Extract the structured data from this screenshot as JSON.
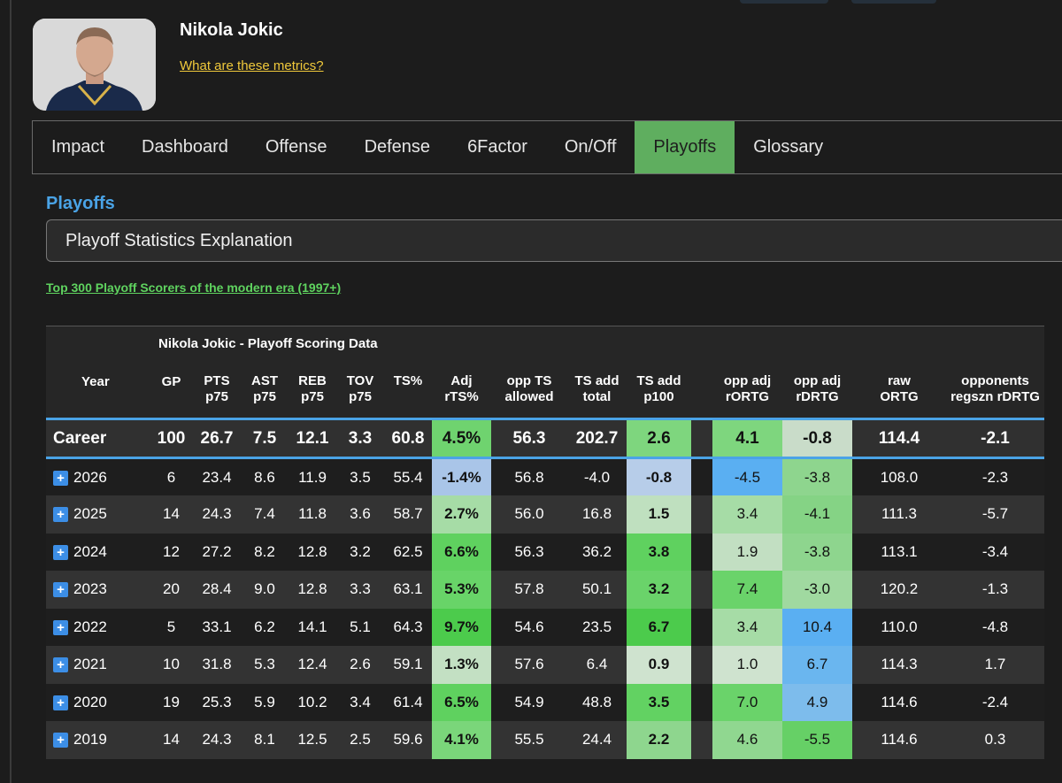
{
  "player": {
    "name": "Nikola Jokic",
    "metrics_link": "What are these metrics?"
  },
  "tabs": [
    {
      "label": "Impact",
      "active": false
    },
    {
      "label": "Dashboard",
      "active": false
    },
    {
      "label": "Offense",
      "active": false
    },
    {
      "label": "Defense",
      "active": false
    },
    {
      "label": "6Factor",
      "active": false
    },
    {
      "label": "On/Off",
      "active": false
    },
    {
      "label": "Playoffs",
      "active": true
    },
    {
      "label": "Glossary",
      "active": false
    }
  ],
  "section": {
    "title": "Playoffs",
    "accordion_label": "Playoff Statistics Explanation",
    "top300_link": "Top 300 Playoff Scorers of the modern era (1997+)"
  },
  "table": {
    "caption": "Nikola Jokic - Playoff Scoring Data",
    "headers": [
      [
        "Year",
        ""
      ],
      [
        "GP",
        ""
      ],
      [
        "PTS",
        "p75"
      ],
      [
        "AST",
        "p75"
      ],
      [
        "REB",
        "p75"
      ],
      [
        "TOV",
        "p75"
      ],
      [
        "TS%",
        ""
      ],
      [
        "Adj",
        "rTS%"
      ],
      [
        "opp TS",
        "allowed"
      ],
      [
        "TS add",
        "total"
      ],
      [
        "TS add",
        "p100"
      ],
      [
        "",
        ""
      ],
      [
        "opp adj",
        "rORTG"
      ],
      [
        "opp adj",
        "rDRTG"
      ],
      [
        "raw",
        "ORTG"
      ],
      [
        "opponents",
        "regszn rDRTG"
      ]
    ],
    "career": {
      "year": "Career",
      "cells": [
        "100",
        "26.7",
        "7.5",
        "12.1",
        "3.3",
        "60.8",
        "4.5%",
        "56.3",
        "202.7",
        "2.6",
        "",
        "4.1",
        "-0.8",
        "114.4",
        "-2.1"
      ],
      "colors": [
        "",
        "",
        "",
        "",
        "",
        "",
        "#6fd36f",
        "",
        "",
        "#7ed67e",
        "",
        "#7ed67e",
        "#c9dcc9",
        "",
        ""
      ]
    },
    "rows": [
      {
        "year": "2026",
        "cells": [
          "6",
          "23.4",
          "8.6",
          "11.9",
          "3.5",
          "55.4",
          "-1.4%",
          "56.8",
          "-4.0",
          "-0.8",
          "",
          "-4.5",
          "-3.8",
          "108.0",
          "-2.3"
        ],
        "colors": [
          "",
          "",
          "",
          "",
          "",
          "",
          "#a9c5e8",
          "",
          "",
          "#b7cde9",
          "",
          "#5aaff2",
          "#8ed58e",
          "",
          ""
        ]
      },
      {
        "year": "2025",
        "cells": [
          "14",
          "24.3",
          "7.4",
          "11.8",
          "3.6",
          "58.7",
          "2.7%",
          "56.0",
          "16.8",
          "1.5",
          "",
          "3.4",
          "-4.1",
          "111.3",
          "-5.7"
        ],
        "colors": [
          "",
          "",
          "",
          "",
          "",
          "",
          "#a6dca6",
          "",
          "",
          "#bfe0bf",
          "",
          "#a6dca6",
          "#85d385",
          "",
          ""
        ]
      },
      {
        "year": "2024",
        "cells": [
          "12",
          "27.2",
          "8.2",
          "12.8",
          "3.2",
          "62.5",
          "6.6%",
          "56.3",
          "36.2",
          "3.8",
          "",
          "1.9",
          "-3.8",
          "113.1",
          "-3.4"
        ],
        "colors": [
          "",
          "",
          "",
          "",
          "",
          "",
          "#5fd15f",
          "",
          "",
          "#5fd15f",
          "",
          "#c2dfc2",
          "#8ed58e",
          "",
          ""
        ]
      },
      {
        "year": "2023",
        "cells": [
          "20",
          "28.4",
          "9.0",
          "12.8",
          "3.3",
          "63.1",
          "5.3%",
          "57.8",
          "50.1",
          "3.2",
          "",
          "7.4",
          "-3.0",
          "120.2",
          "-1.3"
        ],
        "colors": [
          "",
          "",
          "",
          "",
          "",
          "",
          "#68d468",
          "",
          "",
          "#6ad36a",
          "",
          "#6ad36a",
          "#a0d9a0",
          "",
          ""
        ]
      },
      {
        "year": "2022",
        "cells": [
          "5",
          "33.1",
          "6.2",
          "14.1",
          "5.1",
          "64.3",
          "9.7%",
          "54.6",
          "23.5",
          "6.7",
          "",
          "3.4",
          "10.4",
          "110.0",
          "-4.8"
        ],
        "colors": [
          "",
          "",
          "",
          "",
          "",
          "",
          "#4ccb4c",
          "",
          "",
          "#4ccb4c",
          "",
          "#a6dca6",
          "#5aaff2",
          "",
          ""
        ]
      },
      {
        "year": "2021",
        "cells": [
          "10",
          "31.8",
          "5.3",
          "12.4",
          "2.6",
          "59.1",
          "1.3%",
          "57.6",
          "6.4",
          "0.9",
          "",
          "1.0",
          "6.7",
          "114.3",
          "1.7"
        ],
        "colors": [
          "",
          "",
          "",
          "",
          "",
          "",
          "#c3e0c3",
          "",
          "",
          "#cfe3cf",
          "",
          "#cfe3cf",
          "#6ab6ef",
          "",
          ""
        ]
      },
      {
        "year": "2020",
        "cells": [
          "19",
          "25.3",
          "5.9",
          "10.2",
          "3.4",
          "61.4",
          "6.5%",
          "54.9",
          "48.8",
          "3.5",
          "",
          "7.0",
          "4.9",
          "114.6",
          "-2.4"
        ],
        "colors": [
          "",
          "",
          "",
          "",
          "",
          "",
          "#5fd15f",
          "",
          "",
          "#62d262",
          "",
          "#6ad36a",
          "#7dbcec",
          "",
          ""
        ]
      },
      {
        "year": "2019",
        "cells": [
          "14",
          "24.3",
          "8.1",
          "12.5",
          "2.5",
          "59.6",
          "4.1%",
          "55.5",
          "24.4",
          "2.2",
          "",
          "4.6",
          "-5.5",
          "114.6",
          "0.3"
        ],
        "colors": [
          "",
          "",
          "",
          "",
          "",
          "",
          "#7ad67a",
          "",
          "",
          "#8ed68e",
          "",
          "#90d790",
          "#66d066",
          "",
          ""
        ]
      }
    ]
  }
}
